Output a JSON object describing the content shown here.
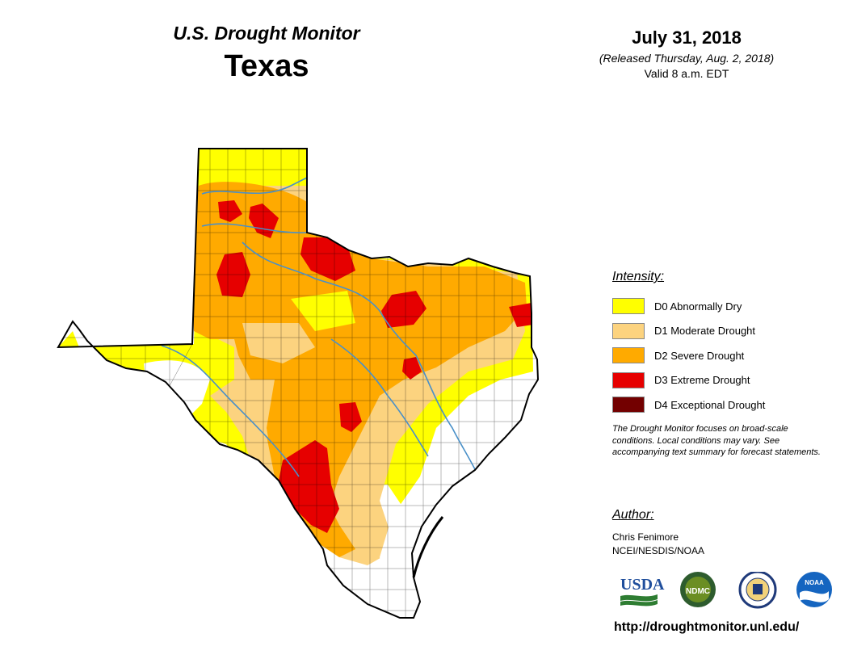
{
  "header": {
    "title": "U.S. Drought Monitor",
    "region": "Texas",
    "date": "July 31, 2018",
    "released": "(Released Thursday, Aug. 2, 2018)",
    "valid": "Valid 8 a.m. EDT"
  },
  "legend": {
    "heading": "Intensity:",
    "items": [
      {
        "label": "D0 Abnormally Dry",
        "color": "#ffff00"
      },
      {
        "label": "D1 Moderate Drought",
        "color": "#fcd37f"
      },
      {
        "label": "D2 Severe Drought",
        "color": "#ffaa00"
      },
      {
        "label": "D3 Extreme Drought",
        "color": "#e60000"
      },
      {
        "label": "D4 Exceptional Drought",
        "color": "#730000"
      }
    ]
  },
  "note": "The Drought Monitor focuses on broad-scale conditions. Local conditions may vary. See accompanying text summary for forecast statements.",
  "author": {
    "heading": "Author:",
    "name": "Chris Fenimore",
    "org": "NCEI/NESDIS/NOAA"
  },
  "logos": [
    {
      "name": "usda-logo",
      "text": "USDA"
    },
    {
      "name": "ndmc-logo",
      "text": "NDMC"
    },
    {
      "name": "commerce-seal-logo"
    },
    {
      "name": "noaa-logo",
      "text": "NOAA"
    }
  ],
  "url": "http://droughtmonitor.unl.edu/",
  "map": {
    "river_color": "#4a90c8",
    "boundary_color": "#000000"
  }
}
